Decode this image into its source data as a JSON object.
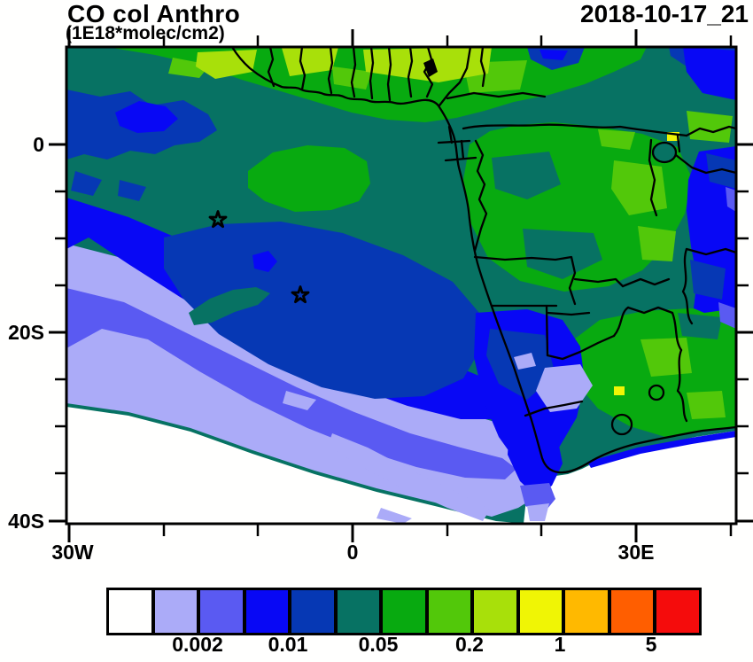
{
  "header": {
    "title": "CO col Anthro",
    "units": "(1E18*molec/cm2)",
    "timestamp": "2018-10-17_21"
  },
  "map": {
    "y_axis_ticks": [
      "0",
      "20S",
      "40S"
    ],
    "x_axis_ticks": [
      "30W",
      "0",
      "30E"
    ],
    "markers": [
      {
        "symbol": "star",
        "lon": -14,
        "lat": -8
      },
      {
        "symbol": "star",
        "lon": -5.5,
        "lat": -16
      }
    ]
  },
  "colorbar": {
    "colors": [
      "#FFFFFE",
      "#ABABF8",
      "#5A5AF2",
      "#0808F5",
      "#0638B4",
      "#077263",
      "#08AA10",
      "#52C80A",
      "#A8E00A",
      "#F0F505",
      "#FFB900",
      "#FF5E00",
      "#F50C0C"
    ],
    "tick_labels": [
      "0.002",
      "0.01",
      "0.05",
      "0.2",
      "1",
      "5"
    ]
  },
  "chart_data": {
    "type": "heatmap",
    "title": "CO col Anthro",
    "subtitle_units": "(1E18*molec/cm2)",
    "timestamp": "2018-10-17_21",
    "projection": "lat-lon map of Africa and South Atlantic",
    "lon_range": [
      -30,
      41
    ],
    "lat_range": [
      -41,
      10.5
    ],
    "x_tick_lons": [
      -30,
      0,
      30
    ],
    "y_tick_lats": [
      0,
      -20,
      -40
    ],
    "contour_levels_labeled": [
      0.002,
      0.01,
      0.05,
      0.2,
      1,
      5
    ],
    "n_color_bins": 13,
    "palette": [
      "#FFFFFE",
      "#ABABF8",
      "#5A5AF2",
      "#0808F5",
      "#0638B4",
      "#077263",
      "#08AA10",
      "#52C80A",
      "#A8E00A",
      "#F0F505",
      "#FFB900",
      "#FF5E00",
      "#F50C0C"
    ],
    "legend_position": "bottom",
    "markers": [
      {
        "symbol": "open-star",
        "lon": -14,
        "lat": -8
      },
      {
        "symbol": "open-star",
        "lon": -5.5,
        "lat": -16
      }
    ],
    "regions": [
      {
        "area": "West Africa coast (Ghana-Nigeria belt)",
        "value_range": "0.2-1",
        "color": "yellow-green"
      },
      {
        "area": "Congo basin and central Africa land",
        "value_range": "0.05-0.5",
        "color": "green over dark teal"
      },
      {
        "area": "Gulf of Guinea / tropical Atlantic",
        "value_range": "0.05-0.2",
        "color": "dark teal"
      },
      {
        "area": "central South Atlantic plume",
        "value_range": "0.01-0.05",
        "color": "navy blue with bright blue rim"
      },
      {
        "area": "southwest South Atlantic",
        "value_range": "<0.002",
        "color": "white with lavender/purple bands"
      },
      {
        "area": "Namibia / western South Africa",
        "value_range": "0.002-0.02",
        "color": "blue with lavender patch"
      },
      {
        "area": "eastern South Africa",
        "value_range": "0.05-0.5",
        "color": "green, yellow spot near Highveld"
      },
      {
        "area": "East African rim / Indian Ocean edge",
        "value_range": "0.005-0.02",
        "color": "blue"
      },
      {
        "area": "Southern Ocean south of Cape",
        "value_range": "<0.002",
        "color": "white"
      }
    ]
  }
}
